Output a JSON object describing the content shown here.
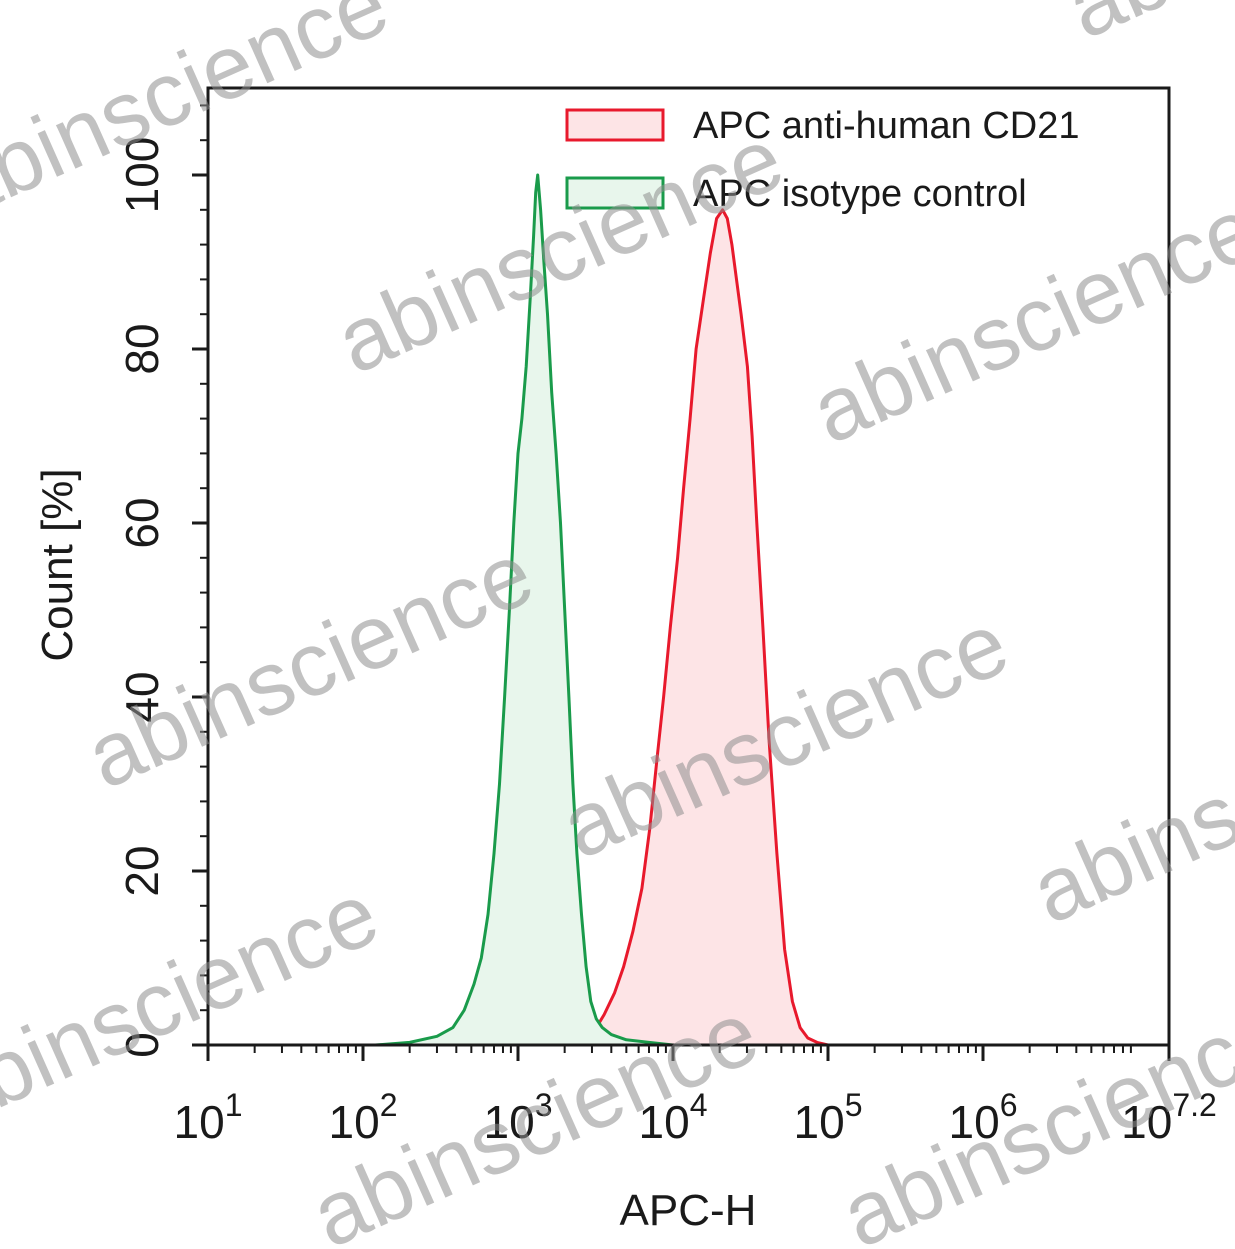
{
  "chart_data": {
    "type": "area",
    "xlabel": "APC-H",
    "ylabel": "Count [%]",
    "x_scale": "log",
    "xlim": [
      10,
      15848932
    ],
    "ylim": [
      0,
      110
    ],
    "x_ticks": [
      {
        "value": 10,
        "base": "10",
        "exp": "1"
      },
      {
        "value": 100,
        "base": "10",
        "exp": "2"
      },
      {
        "value": 1000,
        "base": "10",
        "exp": "3"
      },
      {
        "value": 10000,
        "base": "10",
        "exp": "4"
      },
      {
        "value": 100000,
        "base": "10",
        "exp": "5"
      },
      {
        "value": 1000000,
        "base": "10",
        "exp": "6"
      },
      {
        "value": 15848932,
        "base": "10",
        "exp": "7.2"
      }
    ],
    "y_ticks": [
      "0",
      "20",
      "40",
      "60",
      "80",
      "100"
    ],
    "grid": false,
    "legend_position": "top-right",
    "series": [
      {
        "name": "APC anti-human CD21",
        "color": "#e8192c",
        "fill": "#fde4e6",
        "points": [
          [
            1400,
            0
          ],
          [
            2000,
            0.5
          ],
          [
            2600,
            1
          ],
          [
            3200,
            2
          ],
          [
            3600,
            3.5
          ],
          [
            4200,
            6
          ],
          [
            4800,
            9
          ],
          [
            5500,
            13
          ],
          [
            6300,
            18
          ],
          [
            7100,
            25
          ],
          [
            7900,
            33
          ],
          [
            8700,
            40
          ],
          [
            9600,
            48
          ],
          [
            10700,
            56
          ],
          [
            11700,
            64
          ],
          [
            12900,
            72
          ],
          [
            14100,
            80
          ],
          [
            15800,
            86
          ],
          [
            17400,
            91
          ],
          [
            19100,
            95
          ],
          [
            20900,
            96
          ],
          [
            22400,
            95
          ],
          [
            24000,
            92
          ],
          [
            25700,
            88
          ],
          [
            27500,
            84
          ],
          [
            30200,
            78
          ],
          [
            32400,
            70
          ],
          [
            34700,
            60
          ],
          [
            38000,
            48
          ],
          [
            41700,
            35
          ],
          [
            46800,
            22
          ],
          [
            52500,
            11
          ],
          [
            58900,
            5
          ],
          [
            66100,
            2
          ],
          [
            74100,
            0.8
          ],
          [
            85000,
            0.3
          ],
          [
            100000,
            0
          ]
        ]
      },
      {
        "name": "APC isotype control",
        "color": "#1a9b4b",
        "fill": "#e8f6ec",
        "points": [
          [
            120,
            0
          ],
          [
            200,
            0.3
          ],
          [
            300,
            1
          ],
          [
            380,
            2
          ],
          [
            450,
            4
          ],
          [
            520,
            7
          ],
          [
            580,
            10
          ],
          [
            640,
            15
          ],
          [
            700,
            22
          ],
          [
            760,
            30
          ],
          [
            820,
            40
          ],
          [
            880,
            50
          ],
          [
            940,
            60
          ],
          [
            1000,
            68
          ],
          [
            1060,
            72
          ],
          [
            1130,
            78
          ],
          [
            1200,
            86
          ],
          [
            1260,
            93
          ],
          [
            1300,
            98
          ],
          [
            1340,
            100
          ],
          [
            1400,
            96
          ],
          [
            1470,
            90
          ],
          [
            1550,
            84
          ],
          [
            1650,
            75
          ],
          [
            1760,
            68
          ],
          [
            1880,
            60
          ],
          [
            2000,
            50
          ],
          [
            2130,
            40
          ],
          [
            2260,
            30
          ],
          [
            2400,
            22
          ],
          [
            2570,
            15
          ],
          [
            2750,
            9
          ],
          [
            2950,
            5
          ],
          [
            3200,
            3
          ],
          [
            3500,
            2
          ],
          [
            4000,
            1.2
          ],
          [
            5000,
            0.6
          ],
          [
            7000,
            0.3
          ],
          [
            10000,
            0
          ]
        ]
      }
    ]
  },
  "watermark": {
    "text": "abinscience",
    "color": "#8f8f8f"
  }
}
